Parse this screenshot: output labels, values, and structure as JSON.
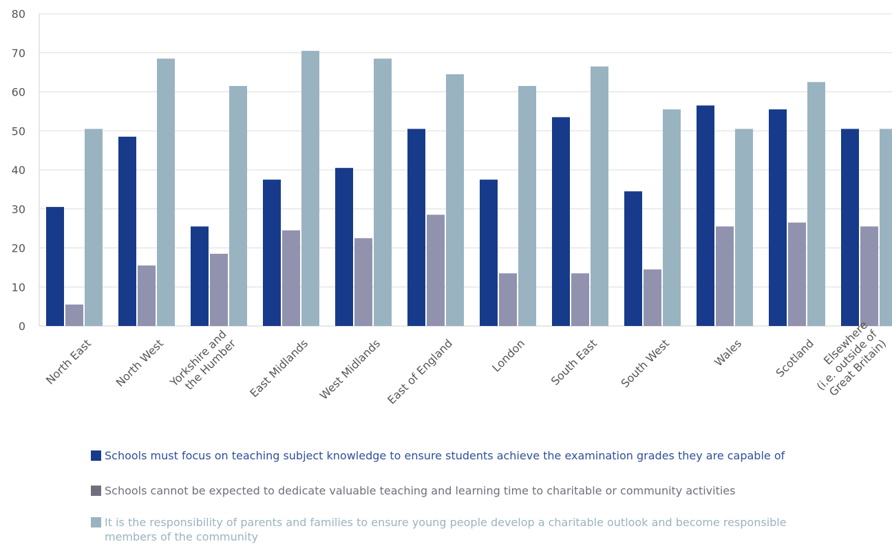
{
  "chart_data": {
    "type": "bar",
    "categories": [
      [
        "North East"
      ],
      [
        "North West"
      ],
      [
        "Yorkshire and",
        "the Humber"
      ],
      [
        "East Midlands"
      ],
      [
        "West Midlands"
      ],
      [
        "East of England"
      ],
      [
        "London"
      ],
      [
        "South East"
      ],
      [
        "South West"
      ],
      [
        "Wales"
      ],
      [
        "Scotland"
      ],
      [
        "Elsewhere",
        "(i.e. outside of",
        "Great Britain)"
      ]
    ],
    "series": [
      {
        "name": "Schools must focus on teaching subject knowledge to ensure students achieve the examination grades they are capable of",
        "color": "#173b8a",
        "values": [
          30.5,
          48.5,
          25.5,
          37.5,
          40.5,
          50.5,
          37.5,
          53.5,
          34.5,
          56.5,
          55.5,
          50.5
        ]
      },
      {
        "name": "Schools cannot be expected to dedicate valuable teaching and learning time to charitable or community activities",
        "color": "#9192ae",
        "values": [
          5.5,
          15.5,
          18.5,
          24.5,
          22.5,
          28.5,
          13.5,
          13.5,
          14.5,
          25.5,
          26.5,
          25.5
        ]
      },
      {
        "name": "It is the responsibility of parents and families to ensure young people develop a charitable outlook and become responsible members of the community",
        "color": "#9ab3c1",
        "values": [
          50.5,
          68.5,
          61.5,
          70.5,
          68.5,
          64.5,
          61.5,
          66.5,
          55.5,
          50.5,
          62.5,
          50.5
        ]
      }
    ],
    "yticks": [
      0,
      10,
      20,
      30,
      40,
      50,
      60,
      70,
      80
    ],
    "ylim": [
      0,
      80
    ],
    "grid": true,
    "legend_placement": "bottom",
    "legend_text_colors": [
      "#2e4f9c",
      "#6f6f7d",
      "#9ab3c1"
    ],
    "legend_swatch_colors": [
      "#173b8a",
      "#6f6f7d",
      "#9ab3c1"
    ]
  }
}
